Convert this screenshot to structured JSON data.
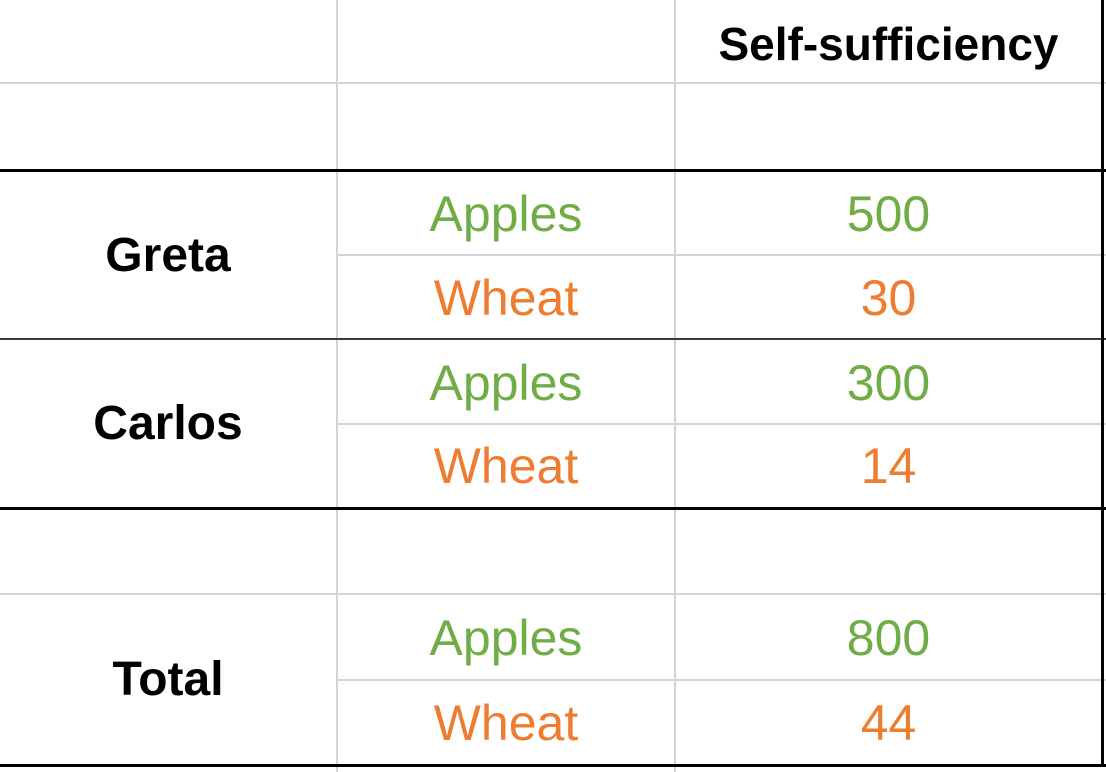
{
  "colors": {
    "apples": "#70AD47",
    "wheat": "#ED7D31",
    "header_text": "#000000",
    "gridline": "#d4d4d4",
    "border": "#000000"
  },
  "table": {
    "header": "Self-sufficiency",
    "groups": [
      {
        "name": "Greta",
        "rows": [
          {
            "crop": "Apples",
            "value": "500"
          },
          {
            "crop": "Wheat",
            "value": "30"
          }
        ]
      },
      {
        "name": "Carlos",
        "rows": [
          {
            "crop": "Apples",
            "value": "300"
          },
          {
            "crop": "Wheat",
            "value": "14"
          }
        ]
      },
      {
        "name": "Total",
        "rows": [
          {
            "crop": "Apples",
            "value": "800"
          },
          {
            "crop": "Wheat",
            "value": "44"
          }
        ]
      }
    ]
  },
  "chart_data": {
    "type": "table",
    "columns": [
      "",
      "",
      "Self-sufficiency"
    ],
    "rows": [
      [
        "Greta",
        "Apples",
        500
      ],
      [
        "Greta",
        "Wheat",
        30
      ],
      [
        "Carlos",
        "Apples",
        300
      ],
      [
        "Carlos",
        "Wheat",
        14
      ],
      [
        "Total",
        "Apples",
        800
      ],
      [
        "Total",
        "Wheat",
        44
      ]
    ]
  }
}
